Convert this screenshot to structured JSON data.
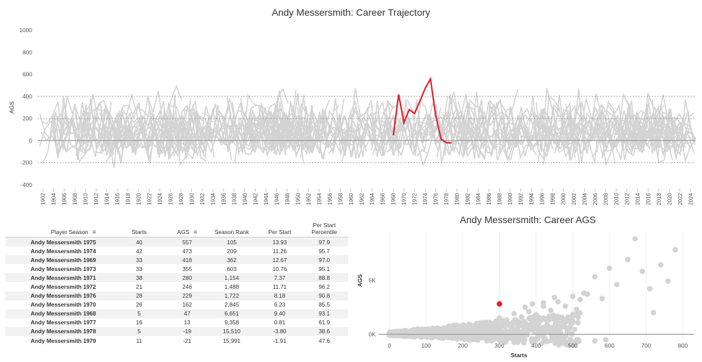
{
  "titles": {
    "trajectory": "Andy Messersmith: Career Trajectory",
    "scatter": "Andy Messersmith: Career AGS"
  },
  "colors": {
    "highlight": "#e0212e",
    "background_lines": "#d3d3d3",
    "zero_line": "#999999"
  },
  "chart_data": [
    {
      "type": "line",
      "title": "Andy Messersmith: Career Trajectory",
      "ylabel": "AGS",
      "xlabel": "",
      "ylim": [
        -400,
        1000
      ],
      "yticks": [
        -400,
        -200,
        0,
        200,
        400,
        600,
        800,
        1000
      ],
      "xlim": [
        1901,
        2025
      ],
      "xticks": [
        1902,
        1904,
        1906,
        1908,
        1910,
        1912,
        1914,
        1916,
        1918,
        1920,
        1922,
        1924,
        1926,
        1928,
        1930,
        1932,
        1934,
        1936,
        1938,
        1940,
        1942,
        1944,
        1946,
        1948,
        1950,
        1952,
        1954,
        1956,
        1958,
        1960,
        1962,
        1964,
        1966,
        1968,
        1970,
        1972,
        1974,
        1976,
        1978,
        1980,
        1982,
        1984,
        1986,
        1988,
        1990,
        1992,
        1994,
        1996,
        1998,
        2000,
        2002,
        2004,
        2006,
        2008,
        2010,
        2012,
        2014,
        2016,
        2018,
        2020,
        2022,
        2024
      ],
      "reference_lines": [
        -200,
        200,
        400
      ],
      "series": [
        {
          "x": [
            1968,
            1969,
            1970,
            1971,
            1972,
            1973,
            1974,
            1975,
            1976,
            1977,
            1978,
            1979
          ],
          "y": [
            47,
            418,
            162,
            280,
            246,
            355,
            473,
            557,
            229,
            13,
            -19,
            -21
          ]
        }
      ]
    },
    {
      "type": "scatter",
      "title": "Andy Messersmith: Career AGS",
      "xlabel": "Starts",
      "ylabel": "AGS",
      "xlim": [
        -30,
        830
      ],
      "xticks": [
        0,
        100,
        200,
        300,
        400,
        500,
        600,
        700,
        800
      ],
      "ylim": [
        -600,
        9500
      ],
      "yticks": [
        {
          "value": 0,
          "label": "0K"
        },
        {
          "value": 5000,
          "label": "5K"
        }
      ],
      "highlight": {
        "x": 300,
        "y": 2800
      },
      "points": [
        [
          10,
          30
        ],
        [
          25,
          -80
        ],
        [
          40,
          150
        ],
        [
          60,
          -150
        ],
        [
          80,
          200
        ],
        [
          100,
          350
        ],
        [
          120,
          -100
        ],
        [
          140,
          500
        ],
        [
          160,
          300
        ],
        [
          180,
          -200
        ],
        [
          200,
          700
        ],
        [
          220,
          900
        ],
        [
          240,
          600
        ],
        [
          260,
          1100
        ],
        [
          280,
          800
        ],
        [
          300,
          1500
        ],
        [
          320,
          1300
        ],
        [
          340,
          1900
        ],
        [
          360,
          1600
        ],
        [
          380,
          2100
        ],
        [
          400,
          1800
        ],
        [
          420,
          2600
        ],
        [
          440,
          2200
        ],
        [
          460,
          3000
        ],
        [
          480,
          2600
        ],
        [
          500,
          3500
        ],
        [
          520,
          3200
        ],
        [
          540,
          3700
        ],
        [
          560,
          5300
        ],
        [
          580,
          3300
        ],
        [
          600,
          6100
        ],
        [
          620,
          4600
        ],
        [
          650,
          6900
        ],
        [
          670,
          8800
        ],
        [
          690,
          5800
        ],
        [
          710,
          4200
        ],
        [
          720,
          2000
        ],
        [
          740,
          6400
        ],
        [
          760,
          4900
        ],
        [
          780,
          7800
        ],
        [
          560,
          -600
        ],
        [
          590,
          -500
        ],
        [
          350,
          -300
        ],
        [
          400,
          -400
        ],
        [
          430,
          800
        ],
        [
          470,
          1500
        ],
        [
          510,
          2300
        ],
        [
          530,
          3800
        ],
        [
          450,
          3400
        ],
        [
          420,
          2900
        ],
        [
          390,
          2800
        ],
        [
          370,
          2500
        ]
      ]
    }
  ],
  "table": {
    "headers": {
      "player_season": "Player Season",
      "starts": "Starts",
      "ags": "AGS",
      "season_rank": "Season Rank",
      "per_start": "Per Start",
      "percentile": "Per Start Percentile"
    },
    "rows": [
      {
        "name": "Andy Messersmith 1975",
        "starts": "40",
        "ags": "557",
        "rank": "105",
        "per_start": "13.93",
        "pct": "97.9"
      },
      {
        "name": "Andy Messersmith 1974",
        "starts": "42",
        "ags": "473",
        "rank": "209",
        "per_start": "11.26",
        "pct": "95.7"
      },
      {
        "name": "Andy Messersmith 1969",
        "starts": "33",
        "ags": "418",
        "rank": "362",
        "per_start": "12.67",
        "pct": "97.0"
      },
      {
        "name": "Andy Messersmith 1973",
        "starts": "33",
        "ags": "355",
        "rank": "603",
        "per_start": "10.76",
        "pct": "95.1"
      },
      {
        "name": "Andy Messersmith 1971",
        "starts": "38",
        "ags": "280",
        "rank": "1,154",
        "per_start": "7.37",
        "pct": "88.8"
      },
      {
        "name": "Andy Messersmith 1972",
        "starts": "21",
        "ags": "246",
        "rank": "1,488",
        "per_start": "11.71",
        "pct": "96.2"
      },
      {
        "name": "Andy Messersmith 1976",
        "starts": "28",
        "ags": "229",
        "rank": "1,722",
        "per_start": "8.18",
        "pct": "90.8"
      },
      {
        "name": "Andy Messersmith 1970",
        "starts": "26",
        "ags": "162",
        "rank": "2,845",
        "per_start": "6.23",
        "pct": "85.5"
      },
      {
        "name": "Andy Messersmith 1968",
        "starts": "5",
        "ags": "47",
        "rank": "6,651",
        "per_start": "9.40",
        "pct": "93.1"
      },
      {
        "name": "Andy Messersmith 1977",
        "starts": "16",
        "ags": "13",
        "rank": "9,358",
        "per_start": "0.81",
        "pct": "61.9"
      },
      {
        "name": "Andy Messersmith 1978",
        "starts": "5",
        "ags": "-19",
        "rank": "15,510",
        "per_start": "-3.80",
        "pct": "38.6"
      },
      {
        "name": "Andy Messersmith 1979",
        "starts": "11",
        "ags": "-21",
        "rank": "15,991",
        "per_start": "-1.91",
        "pct": "47.6"
      }
    ]
  }
}
